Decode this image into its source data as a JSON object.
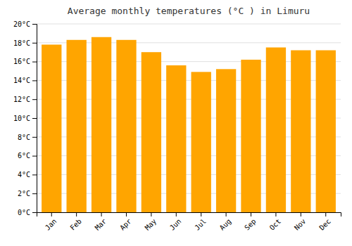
{
  "chart_data": {
    "type": "bar",
    "title": "Average monthly temperatures (°C ) in Limuru",
    "categories": [
      "Jan",
      "Feb",
      "Mar",
      "Apr",
      "May",
      "Jun",
      "Jul",
      "Aug",
      "Sep",
      "Oct",
      "Nov",
      "Dec"
    ],
    "values": [
      17.8,
      18.3,
      18.6,
      18.3,
      17.0,
      15.6,
      14.9,
      15.2,
      16.2,
      17.5,
      17.2,
      17.2
    ],
    "color": "#FFA500",
    "ylim": [
      0,
      20
    ],
    "yticks": [
      {
        "value": 0,
        "label": "0°C"
      },
      {
        "value": 2,
        "label": "2°C"
      },
      {
        "value": 4,
        "label": "4°C"
      },
      {
        "value": 6,
        "label": "6°C"
      },
      {
        "value": 8,
        "label": "8°C"
      },
      {
        "value": 10,
        "label": "10°C"
      },
      {
        "value": 12,
        "label": "12°C"
      },
      {
        "value": 14,
        "label": "14°C"
      },
      {
        "value": 16,
        "label": "16°C"
      },
      {
        "value": 18,
        "label": "18°C"
      },
      {
        "value": 20,
        "label": "20°C"
      }
    ],
    "grid": true
  }
}
